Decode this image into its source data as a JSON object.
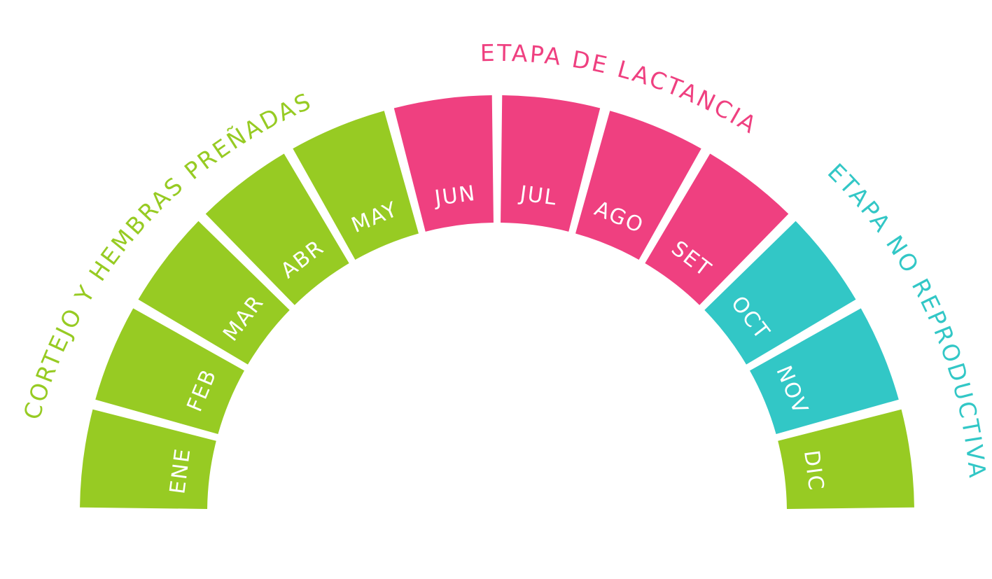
{
  "colors": {
    "green": "#97cb23",
    "pink": "#ef4080",
    "teal": "#32c7c6",
    "background": "#ffffff"
  },
  "phases": [
    {
      "key": "green",
      "label": "CORTEJO Y HEMBRAS PREÑADAS"
    },
    {
      "key": "pink",
      "label": "ETAPA DE LACTANCIA"
    },
    {
      "key": "teal",
      "label": "ETAPA NO REPRODUCTIVA"
    }
  ],
  "months": [
    {
      "label": "ENE",
      "color": "green"
    },
    {
      "label": "FEB",
      "color": "green"
    },
    {
      "label": "MAR",
      "color": "green"
    },
    {
      "label": "ABR",
      "color": "green"
    },
    {
      "label": "MAY",
      "color": "green"
    },
    {
      "label": "JUN",
      "color": "pink"
    },
    {
      "label": "JUL",
      "color": "pink"
    },
    {
      "label": "AGO",
      "color": "pink"
    },
    {
      "label": "SET",
      "color": "pink"
    },
    {
      "label": "OCT",
      "color": "teal"
    },
    {
      "label": "NOV",
      "color": "teal"
    },
    {
      "label": "DIC",
      "color": "green"
    }
  ]
}
